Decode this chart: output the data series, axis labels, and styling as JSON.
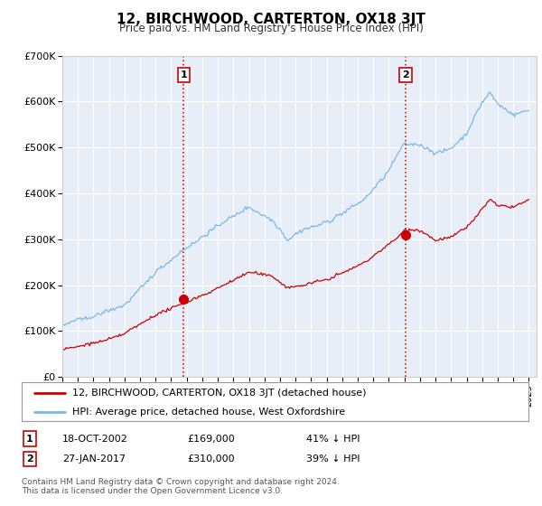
{
  "title": "12, BIRCHWOOD, CARTERTON, OX18 3JT",
  "subtitle": "Price paid vs. HM Land Registry's House Price Index (HPI)",
  "background_color": "#ffffff",
  "plot_bg_color": "#e8eef8",
  "grid_color": "#ffffff",
  "hpi_color": "#7ab8e8",
  "price_color": "#cc0000",
  "dashed_line_color": "#cc0000",
  "ylim": [
    0,
    700000
  ],
  "yticks": [
    0,
    100000,
    200000,
    300000,
    400000,
    500000,
    600000,
    700000
  ],
  "ytick_labels": [
    "£0",
    "£100K",
    "£200K",
    "£300K",
    "£400K",
    "£500K",
    "£600K",
    "£700K"
  ],
  "sale1_date_num": 2002.8,
  "sale1_price": 169000,
  "sale1_label": "1",
  "sale2_date_num": 2017.07,
  "sale2_price": 310000,
  "sale2_label": "2",
  "legend_price_label": "12, BIRCHWOOD, CARTERTON, OX18 3JT (detached house)",
  "legend_hpi_label": "HPI: Average price, detached house, West Oxfordshire",
  "footer_line1": "Contains HM Land Registry data © Crown copyright and database right 2024.",
  "footer_line2": "This data is licensed under the Open Government Licence v3.0.",
  "table_row1": [
    "1",
    "18-OCT-2002",
    "£169,000",
    "41% ↓ HPI"
  ],
  "table_row2": [
    "2",
    "27-JAN-2017",
    "£310,000",
    "39% ↓ HPI"
  ],
  "xmin": 1995,
  "xmax": 2025.5
}
